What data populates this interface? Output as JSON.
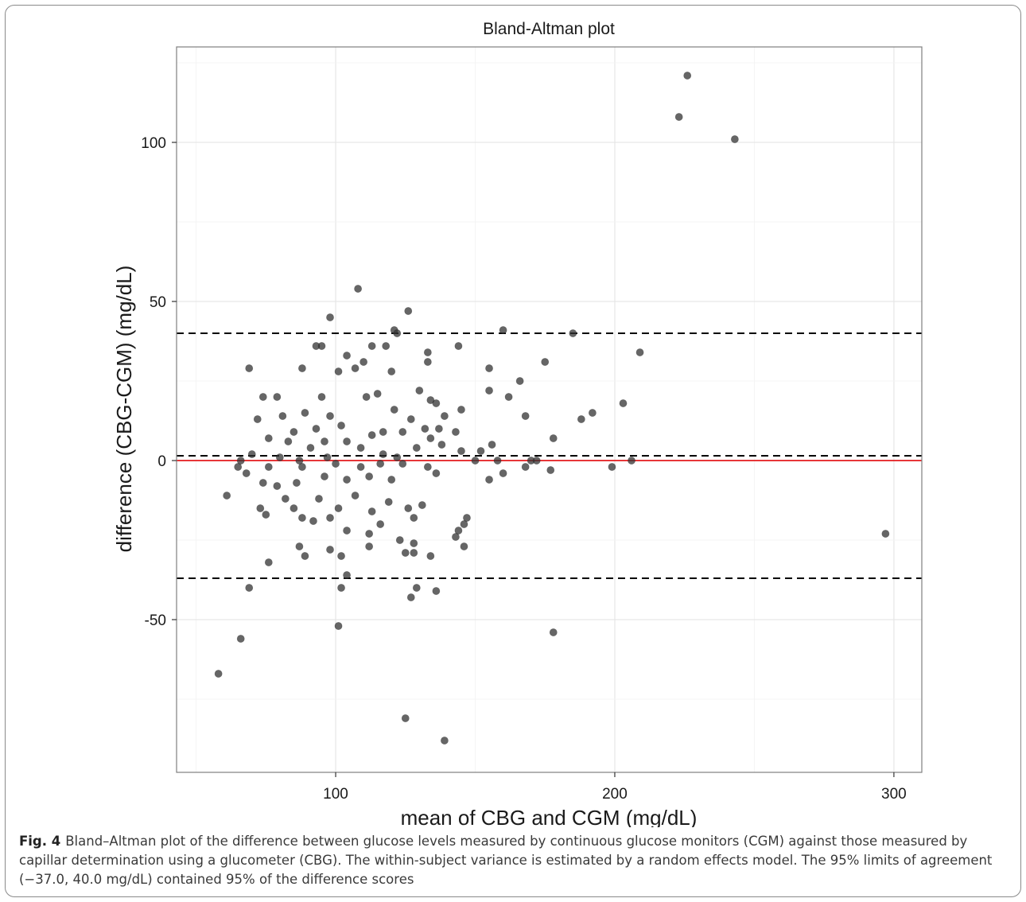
{
  "chart_data": {
    "type": "scatter",
    "title": "Bland-Altman plot",
    "xlabel": "mean of CBG and CGM (mg/dL)",
    "ylabel": "difference (CBG-CGM) (mg/dL)",
    "xlim": [
      43,
      310
    ],
    "ylim": [
      -98,
      130
    ],
    "x_ticks": [
      100,
      200,
      300
    ],
    "y_ticks": [
      -50,
      0,
      50,
      100
    ],
    "x_tick_labels": [
      "100",
      "200",
      "300"
    ],
    "y_tick_labels": [
      "-50",
      "0",
      "50",
      "100"
    ],
    "grid": true,
    "reference_lines": [
      {
        "kind": "zero",
        "y": 0,
        "color": "#e41a1c",
        "style": "solid"
      },
      {
        "kind": "mean difference",
        "y": 1.5,
        "color": "#000000",
        "style": "dashed"
      },
      {
        "kind": "upper limit of agreement",
        "y": 40.0,
        "color": "#000000",
        "style": "dashed"
      },
      {
        "kind": "lower limit of agreement",
        "y": -37.0,
        "color": "#000000",
        "style": "dashed"
      }
    ],
    "point_color": "#333333",
    "points": [
      [
        226,
        121
      ],
      [
        223,
        108
      ],
      [
        243,
        101
      ],
      [
        108,
        54
      ],
      [
        126,
        47
      ],
      [
        98,
        45
      ],
      [
        121,
        41
      ],
      [
        122,
        40
      ],
      [
        160,
        41
      ],
      [
        185,
        40
      ],
      [
        144,
        36
      ],
      [
        113,
        36
      ],
      [
        95,
        36
      ],
      [
        93,
        36
      ],
      [
        118,
        36
      ],
      [
        133,
        34
      ],
      [
        209,
        34
      ],
      [
        133,
        31
      ],
      [
        104,
        33
      ],
      [
        175,
        31
      ],
      [
        110,
        31
      ],
      [
        69,
        29
      ],
      [
        88,
        29
      ],
      [
        155,
        29
      ],
      [
        107,
        29
      ],
      [
        120,
        28
      ],
      [
        101,
        28
      ],
      [
        166,
        25
      ],
      [
        162,
        20
      ],
      [
        74,
        20
      ],
      [
        79,
        20
      ],
      [
        95,
        20
      ],
      [
        111,
        20
      ],
      [
        134,
        19
      ],
      [
        155,
        22
      ],
      [
        130,
        22
      ],
      [
        115,
        21
      ],
      [
        145,
        16
      ],
      [
        203,
        18
      ],
      [
        136,
        18
      ],
      [
        192,
        15
      ],
      [
        121,
        16
      ],
      [
        168,
        14
      ],
      [
        139,
        14
      ],
      [
        188,
        13
      ],
      [
        72,
        13
      ],
      [
        81,
        14
      ],
      [
        89,
        15
      ],
      [
        98,
        14
      ],
      [
        127,
        13
      ],
      [
        132,
        10
      ],
      [
        143,
        9
      ],
      [
        137,
        10
      ],
      [
        124,
        9
      ],
      [
        117,
        9
      ],
      [
        102,
        11
      ],
      [
        93,
        10
      ],
      [
        85,
        9
      ],
      [
        76,
        7
      ],
      [
        178,
        7
      ],
      [
        134,
        7
      ],
      [
        113,
        8
      ],
      [
        104,
        6
      ],
      [
        96,
        6
      ],
      [
        83,
        6
      ],
      [
        156,
        5
      ],
      [
        138,
        5
      ],
      [
        145,
        3
      ],
      [
        152,
        3
      ],
      [
        129,
        4
      ],
      [
        109,
        4
      ],
      [
        91,
        4
      ],
      [
        70,
        2
      ],
      [
        117,
        2
      ],
      [
        150,
        0
      ],
      [
        158,
        0
      ],
      [
        170,
        0
      ],
      [
        206,
        0
      ],
      [
        172,
        0
      ],
      [
        122,
        1
      ],
      [
        97,
        1
      ],
      [
        87,
        0
      ],
      [
        80,
        1
      ],
      [
        65,
        -2
      ],
      [
        66,
        0
      ],
      [
        68,
        -4
      ],
      [
        76,
        -2
      ],
      [
        88,
        -2
      ],
      [
        100,
        -1
      ],
      [
        109,
        -2
      ],
      [
        116,
        -1
      ],
      [
        124,
        -1
      ],
      [
        133,
        -2
      ],
      [
        168,
        -2
      ],
      [
        177,
        -3
      ],
      [
        199,
        -2
      ],
      [
        155,
        -6
      ],
      [
        160,
        -4
      ],
      [
        136,
        -4
      ],
      [
        120,
        -6
      ],
      [
        112,
        -5
      ],
      [
        104,
        -6
      ],
      [
        96,
        -5
      ],
      [
        86,
        -7
      ],
      [
        79,
        -8
      ],
      [
        74,
        -7
      ],
      [
        61,
        -11
      ],
      [
        82,
        -12
      ],
      [
        94,
        -12
      ],
      [
        107,
        -11
      ],
      [
        119,
        -13
      ],
      [
        131,
        -14
      ],
      [
        73,
        -15
      ],
      [
        85,
        -15
      ],
      [
        101,
        -15
      ],
      [
        113,
        -16
      ],
      [
        126,
        -15
      ],
      [
        75,
        -17
      ],
      [
        88,
        -18
      ],
      [
        98,
        -18
      ],
      [
        116,
        -20
      ],
      [
        128,
        -18
      ],
      [
        147,
        -18
      ],
      [
        146,
        -20
      ],
      [
        144,
        -22
      ],
      [
        143,
        -24
      ],
      [
        92,
        -19
      ],
      [
        104,
        -22
      ],
      [
        112,
        -23
      ],
      [
        123,
        -25
      ],
      [
        128,
        -26
      ],
      [
        146,
        -27
      ],
      [
        87,
        -27
      ],
      [
        98,
        -28
      ],
      [
        112,
        -27
      ],
      [
        125,
        -29
      ],
      [
        134,
        -30
      ],
      [
        89,
        -30
      ],
      [
        102,
        -30
      ],
      [
        128,
        -29
      ],
      [
        104,
        -36
      ],
      [
        76,
        -32
      ],
      [
        69,
        -40
      ],
      [
        102,
        -40
      ],
      [
        129,
        -40
      ],
      [
        136,
        -41
      ],
      [
        127,
        -43
      ],
      [
        66,
        -56
      ],
      [
        101,
        -52
      ],
      [
        178,
        -54
      ],
      [
        58,
        -67
      ],
      [
        297,
        -23
      ],
      [
        125,
        -81
      ],
      [
        139,
        -88
      ]
    ]
  },
  "caption": {
    "label": "Fig. 4",
    "text": "Bland–Altman plot of the difference between glucose levels measured by continuous glucose monitors (CGM) against those measured by capillar determination using a glucometer (CBG). The within-subject variance is estimated by a random effects model. The 95% limits of agreement (−37.0, 40.0 mg/dL) contained 95% of the difference scores"
  }
}
